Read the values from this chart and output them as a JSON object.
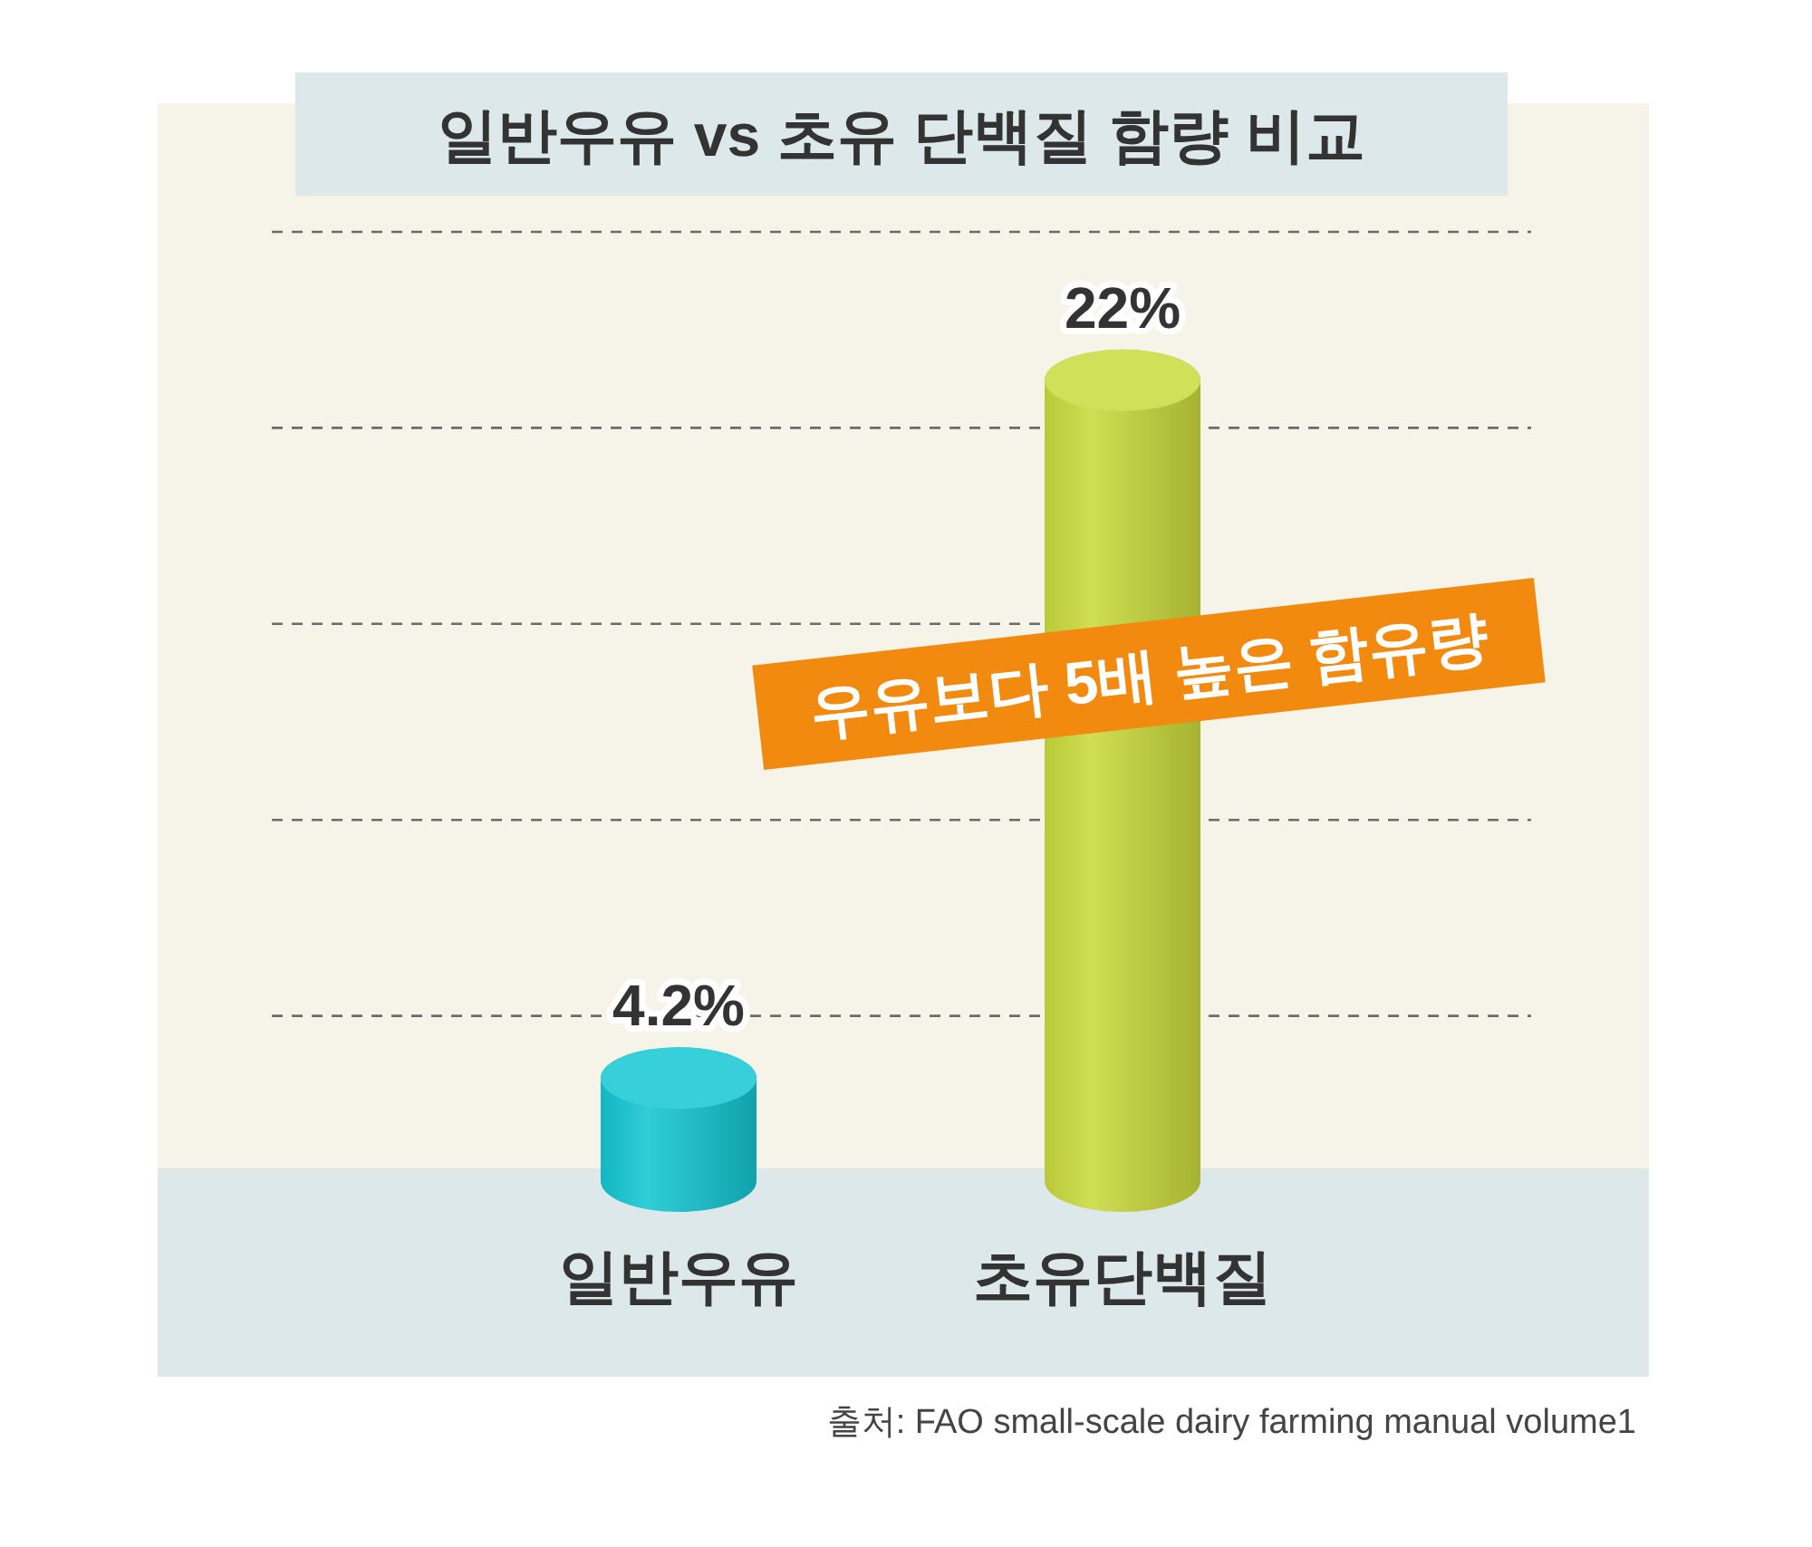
{
  "chart_data": {
    "type": "bar",
    "title": "일반우유 vs 초유 단백질 함량 비교",
    "categories": [
      "일반우유",
      "초유단백질"
    ],
    "values": [
      4.2,
      22
    ],
    "colors": [
      "#14c6d2",
      "#c9da3c"
    ],
    "value_labels": [
      "4.2%",
      "22%"
    ],
    "grid": "y",
    "tick_labels": "x",
    "annotations": [
      "우유보다 5배 높은 함유량",
      "출처: FAO small-scale dairy farming manual volume1"
    ]
  }
}
